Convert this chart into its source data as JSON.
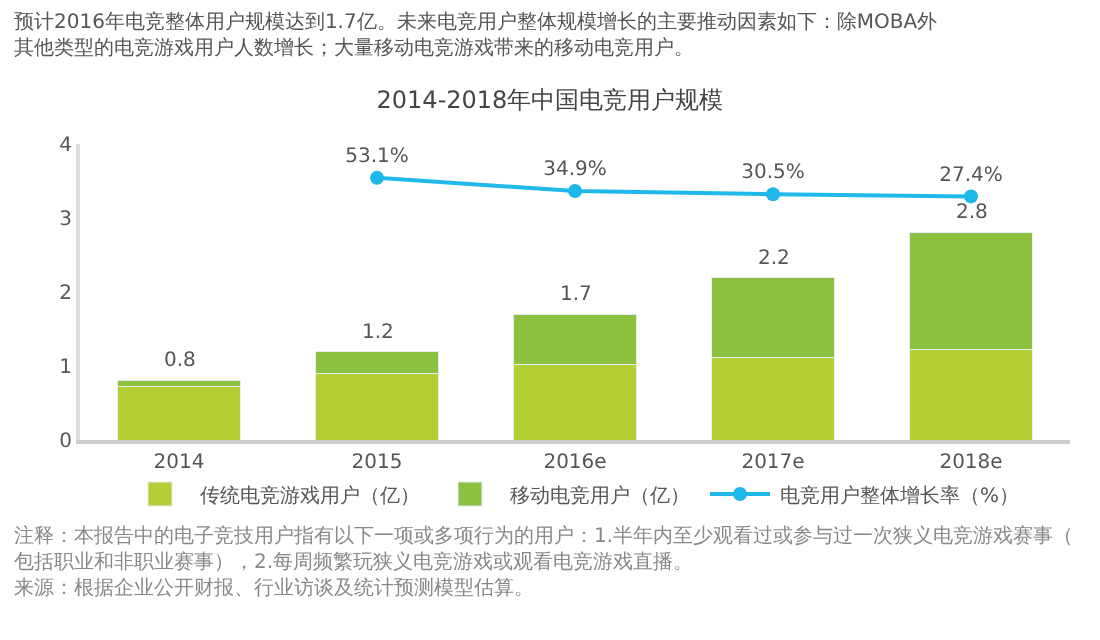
{
  "chart_data": {
    "type": "bar",
    "title": "2014-2018年中国电竞用户规模",
    "subtitle": "预计2016年电竞整体用户规模达到1.7亿。未来电竞用户整体规模增长的主要推动因素如下：除MOBA外其他类型的电竞游戏用户人数增长；大量移动电竞游戏带来的移动电竞用户。",
    "categories": [
      "2014",
      "2015",
      "2016e",
      "2017e",
      "2018e"
    ],
    "stacked": true,
    "series": [
      {
        "name": "传统电竞游戏用户（亿）",
        "color": "#b3cf33",
        "values": [
          0.72,
          0.9,
          1.02,
          1.12,
          1.22
        ]
      },
      {
        "name": "移动电竞用户（亿）",
        "color": "#8cc140",
        "values": [
          0.08,
          0.3,
          0.68,
          1.08,
          1.58
        ]
      },
      {
        "name": "电竞用户整体增长率（%）",
        "type": "line",
        "axis": "y2",
        "color": "#1eb8ea",
        "marker": "circle",
        "values": [
          null,
          53.1,
          34.9,
          30.5,
          27.4
        ],
        "value_labels": [
          null,
          "53.1%",
          "34.9%",
          "30.5%",
          "27.4%"
        ]
      }
    ],
    "totals": [
      "0.8",
      "1.2",
      "1.7",
      "2.2",
      "2.8"
    ],
    "ylim": [
      0,
      4
    ],
    "yticks": [
      0,
      1,
      2,
      3,
      4
    ],
    "y2lim": [
      -310,
      100
    ],
    "legend": "bottom",
    "annotations": [
      "注释：本报告中的电子竞技用户指有以下一项或多项行为的用户：1.半年内至少观看过或参与过一次狭义电竞游戏赛事（包括职业和非职业赛事），2.每周频繁玩狭义电竞游戏或观看电竞游戏直播。",
      "来源：根据企业公开财报、行业访谈及统计预测模型估算。"
    ]
  }
}
